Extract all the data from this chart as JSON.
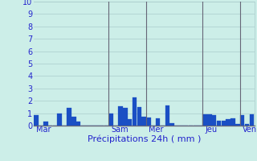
{
  "xlabel": "Précipitations 24h ( mm )",
  "ylim": [
    0,
    10
  ],
  "yticks": [
    0,
    1,
    2,
    3,
    4,
    5,
    6,
    7,
    8,
    9,
    10
  ],
  "background_color": "#cceee8",
  "bar_color": "#1a4fc4",
  "bar_edge_color": "#1a4fc4",
  "grid_color": "#aacccc",
  "day_labels": [
    "Mar",
    "Sam",
    "Mer",
    "Jeu",
    "Ven"
  ],
  "day_line_color": "#666677",
  "xlabel_fontsize": 8,
  "ytick_fontsize": 7,
  "xtick_fontsize": 7,
  "axis_label_color": "#2222cc",
  "tick_label_color": "#2222cc",
  "values": [
    0.85,
    0,
    0.3,
    0,
    0,
    0.95,
    0,
    1.4,
    0.7,
    0.3,
    0,
    0,
    0,
    0,
    0,
    0,
    1.0,
    0,
    1.55,
    1.45,
    0.5,
    2.3,
    1.5,
    0.7,
    0.65,
    0,
    0.6,
    0,
    1.6,
    0.2,
    0,
    0,
    0,
    0,
    0,
    0,
    0.9,
    0.9,
    0.85,
    0.4,
    0.4,
    0.5,
    0.6,
    0.15,
    0.85,
    0.1,
    0.9
  ],
  "day_sep_indices": [
    16,
    24,
    36,
    44
  ],
  "day_tick_indices": [
    0,
    16,
    24,
    36,
    44
  ]
}
